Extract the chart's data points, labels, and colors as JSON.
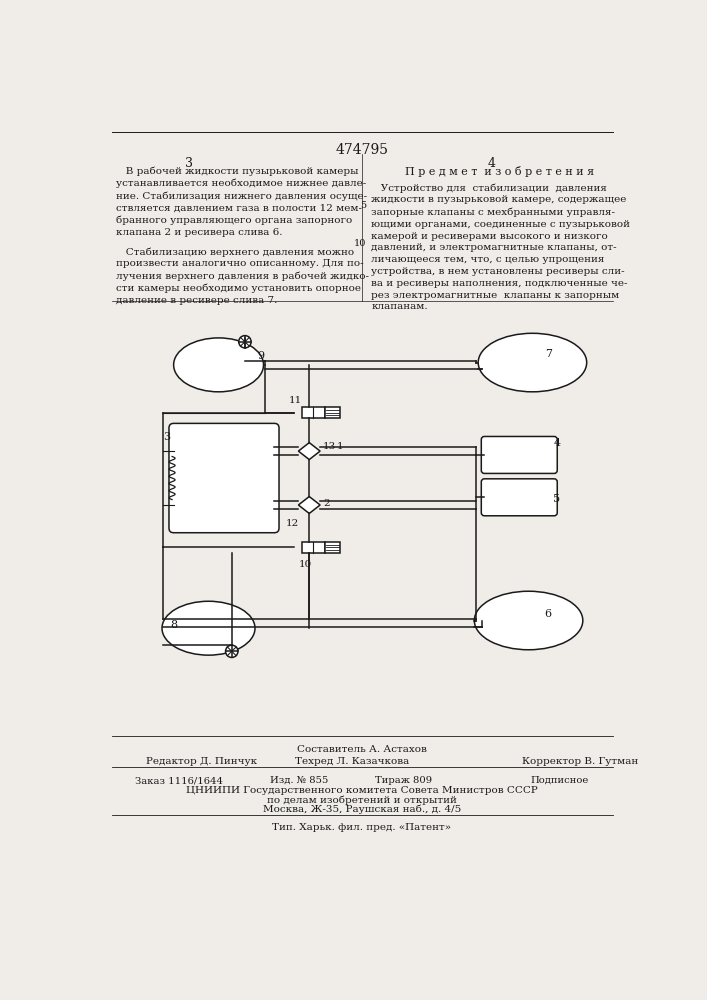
{
  "patent_number": "474795",
  "page_left": "3",
  "page_right": "4",
  "footer_sestavitel": "Составитель А. Астахов",
  "footer_redaktor": "Редактор Д. Пинчук",
  "footer_tehred": "Техред Л. Казачкова",
  "footer_korrektor": "Корректор В. Гутман",
  "footer_zakaz": "Заказ 1116/1644",
  "footer_izd": "Изд. № 855",
  "footer_tirazh": "Тираж 809",
  "footer_podpisnoe": "Подписное",
  "footer_org": "ЦНИИПИ Государственного комитета Совета Министров СССР",
  "footer_dela": "по делам изобретений и открытий",
  "footer_addr": "Москва, Ж-35, Раушская наб., д. 4/5",
  "footer_tip": "Тип. Харьк. фил. пред. «Патент»",
  "bg_color": "#f0ede8",
  "text_color": "#1a1a1a",
  "diagram_color": "#1a1a1a"
}
